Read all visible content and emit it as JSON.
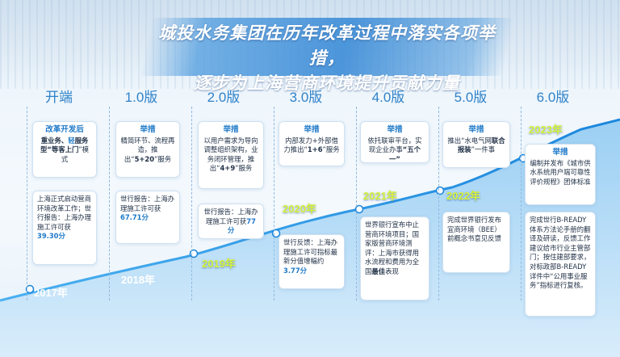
{
  "title": {
    "line1": "城投水务集团在历年改革过程中落实各项举措，",
    "line2": "逐步为上海营商环境提升贡献力量"
  },
  "stages": [
    {
      "label": "开端"
    },
    {
      "label": "1.0版"
    },
    {
      "label": "2.0版"
    },
    {
      "label": "3.0版"
    },
    {
      "label": "4.0版"
    },
    {
      "label": "5.0版"
    },
    {
      "label": "6.0版"
    }
  ],
  "years": [
    "2017年",
    "2018年",
    "2019年",
    "2020年",
    "2021年",
    "2022年",
    "2023年"
  ],
  "cards": {
    "s0_top_head": "改革开发后",
    "s0_top_body1": "重业务、",
    "s0_top_bold1": "轻",
    "s0_top_body2": "服务型“",
    "s0_top_bold2": "等客上门",
    "s0_top_body3": "”模式",
    "s0_bottom_body": "上海正式启动营商环境改革工作；世行报告：上海办理施工许可获",
    "s0_bottom_value": "39.30分",
    "s1_top_head": "举措",
    "s1_top_body": "精简环节、流程再造，推出“",
    "s1_top_bold": "5+20",
    "s1_top_tail": "”服务",
    "s1_bottom_body": "世行报告：上海办理施工许可获",
    "s1_bottom_value": "67.71分",
    "s2_top_head": "举措",
    "s2_top_body": "以用户需求为导向调整组织架构，业务闭环管理，推出“",
    "s2_top_bold": "4+9",
    "s2_top_tail": "”服务",
    "s2_bottom_body": "世行报告：上海办理施工许可获",
    "s2_bottom_value": "77分",
    "s3_top_head": "举措",
    "s3_top_body": "内部发力+外部借力推出“",
    "s3_top_bold": "1+6",
    "s3_top_tail": "”服务",
    "s3_bottom_body": "世行反馈：上海办理施工许可指标最新分值增幅约",
    "s3_bottom_value": "3.77分",
    "s4_top_head": "举措",
    "s4_top_body": "依托联审平台，实现企业办事",
    "s4_top_bold": "“五个一”",
    "s4_bottom_body1": "世界银行宣布中止营商环境项目；国家版营商环境测评：上海市获得用水流程和费用为全国",
    "s4_bottom_bold": "最佳",
    "s4_bottom_tail": "表现",
    "s5_top_head": "举措",
    "s5_top_body": "推出“水电气网",
    "s5_top_bold": "联合报装",
    "s5_top_tail": "”一件事",
    "s5_bottom_body": "完成世界银行发布宜商环境（BEE）前概念书意见反馈",
    "s6_top_head": "举措",
    "s6_top_body": "编制并发布《城市供水系统用户端可靠性评价规程》团体标准",
    "s6_bottom_body": "完成世行B-READY体系方法论手册的翻译及研读，反馈工作建议给市行业主管部门；按住建部要求，对标政部B-READY详件中“公用事业服务”指标进行复核。"
  }
}
